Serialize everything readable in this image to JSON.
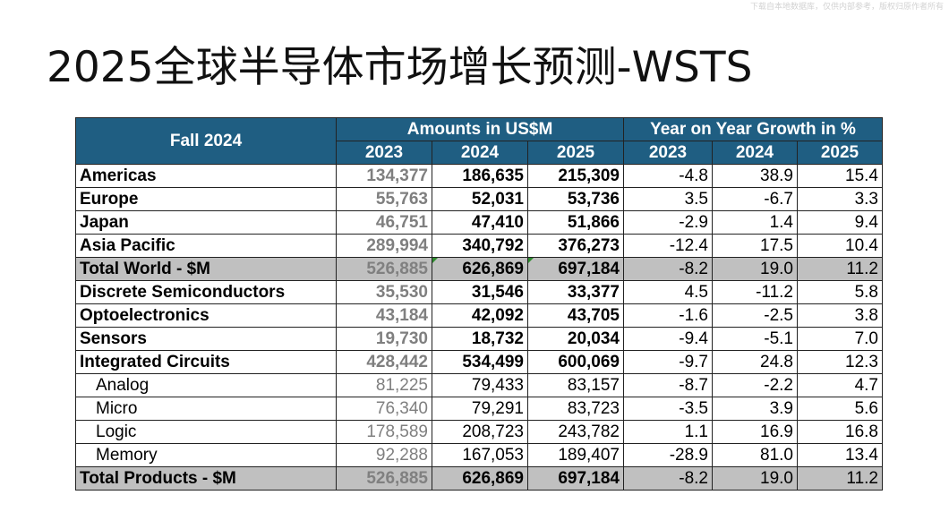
{
  "watermark": "下载自本地数据库，仅供内部参考，版权归原作者所有",
  "title": "2025全球半导体市场增长预测-WSTS",
  "table": {
    "header_label": "Fall 2024",
    "group_amounts": "Amounts in US$M",
    "group_growth": "Year on Year Growth in %",
    "years": [
      "2023",
      "2024",
      "2025"
    ],
    "rows": [
      {
        "label": "Americas",
        "a2023": "134,377",
        "a2024": "186,635",
        "a2025": "215,309",
        "g2023": "-4.8",
        "g2024": "38.9",
        "g2025": "15.4"
      },
      {
        "label": "Europe",
        "a2023": "55,763",
        "a2024": "52,031",
        "a2025": "53,736",
        "g2023": "3.5",
        "g2024": "-6.7",
        "g2025": "3.3"
      },
      {
        "label": "Japan",
        "a2023": "46,751",
        "a2024": "47,410",
        "a2025": "51,866",
        "g2023": "-2.9",
        "g2024": "1.4",
        "g2025": "9.4"
      },
      {
        "label": "Asia Pacific",
        "a2023": "289,994",
        "a2024": "340,792",
        "a2025": "376,273",
        "g2023": "-12.4",
        "g2024": "17.5",
        "g2025": "10.4"
      },
      {
        "label": "Total World - $M",
        "a2023": "526,885",
        "a2024": "626,869",
        "a2025": "697,184",
        "g2023": "-8.2",
        "g2024": "19.0",
        "g2025": "11.2"
      },
      {
        "label": "Discrete Semiconductors",
        "a2023": "35,530",
        "a2024": "31,546",
        "a2025": "33,377",
        "g2023": "4.5",
        "g2024": "-11.2",
        "g2025": "5.8"
      },
      {
        "label": "Optoelectronics",
        "a2023": "43,184",
        "a2024": "42,092",
        "a2025": "43,705",
        "g2023": "-1.6",
        "g2024": "-2.5",
        "g2025": "3.8"
      },
      {
        "label": "Sensors",
        "a2023": "19,730",
        "a2024": "18,732",
        "a2025": "20,034",
        "g2023": "-9.4",
        "g2024": "-5.1",
        "g2025": "7.0"
      },
      {
        "label": "Integrated Circuits",
        "a2023": "428,442",
        "a2024": "534,499",
        "a2025": "600,069",
        "g2023": "-9.7",
        "g2024": "24.8",
        "g2025": "12.3"
      },
      {
        "label": "Analog",
        "a2023": "81,225",
        "a2024": "79,433",
        "a2025": "83,157",
        "g2023": "-8.7",
        "g2024": "-2.2",
        "g2025": "4.7"
      },
      {
        "label": "Micro",
        "a2023": "76,340",
        "a2024": "79,291",
        "a2025": "83,723",
        "g2023": "-3.5",
        "g2024": "3.9",
        "g2025": "5.6"
      },
      {
        "label": "Logic",
        "a2023": "178,589",
        "a2024": "208,723",
        "a2025": "243,782",
        "g2023": "1.1",
        "g2024": "16.9",
        "g2025": "16.8"
      },
      {
        "label": "Memory",
        "a2023": "92,288",
        "a2024": "167,053",
        "a2025": "189,407",
        "g2023": "-28.9",
        "g2024": "81.0",
        "g2025": "13.4"
      },
      {
        "label": "Total Products - $M",
        "a2023": "526,885",
        "a2024": "626,869",
        "a2025": "697,184",
        "g2023": "-8.2",
        "g2024": "19.0",
        "g2025": "11.2"
      }
    ]
  },
  "colors": {
    "header_bg": "#1f5e82",
    "header_text": "#ffffff",
    "total_row_bg": "#c0c0c0",
    "muted_2023": "#7f7f7f",
    "excel_marker": "#2e8b2e"
  }
}
